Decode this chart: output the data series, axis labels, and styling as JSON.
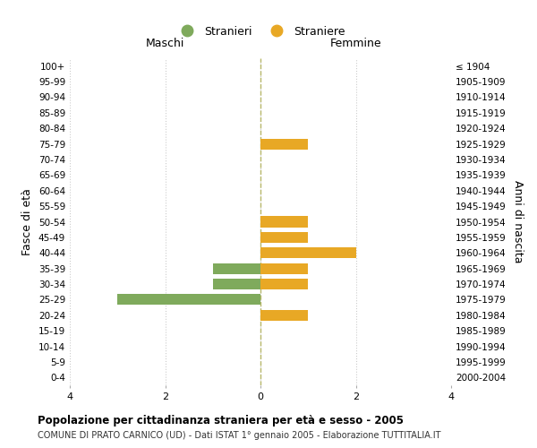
{
  "age_groups": [
    "100+",
    "95-99",
    "90-94",
    "85-89",
    "80-84",
    "75-79",
    "70-74",
    "65-69",
    "60-64",
    "55-59",
    "50-54",
    "45-49",
    "40-44",
    "35-39",
    "30-34",
    "25-29",
    "20-24",
    "15-19",
    "10-14",
    "5-9",
    "0-4"
  ],
  "birth_years": [
    "≤ 1904",
    "1905-1909",
    "1910-1914",
    "1915-1919",
    "1920-1924",
    "1925-1929",
    "1930-1934",
    "1935-1939",
    "1940-1944",
    "1945-1949",
    "1950-1954",
    "1955-1959",
    "1960-1964",
    "1965-1969",
    "1970-1974",
    "1975-1979",
    "1980-1984",
    "1985-1989",
    "1990-1994",
    "1995-1999",
    "2000-2004"
  ],
  "males": [
    0,
    0,
    0,
    0,
    0,
    0,
    0,
    0,
    0,
    0,
    0,
    0,
    0,
    1,
    1,
    3,
    0,
    0,
    0,
    0,
    0
  ],
  "females": [
    0,
    0,
    0,
    0,
    0,
    1,
    0,
    0,
    0,
    0,
    1,
    1,
    2,
    1,
    1,
    0,
    1,
    0,
    0,
    0,
    0
  ],
  "male_color": "#7faa5c",
  "female_color": "#e8a825",
  "xlim": 4,
  "xlabel_left": "Maschi",
  "xlabel_right": "Femmine",
  "ylabel_left": "Fasce di età",
  "ylabel_right": "Anni di nascita",
  "legend_male": "Stranieri",
  "legend_female": "Straniere",
  "title": "Popolazione per cittadinanza straniera per età e sesso - 2005",
  "subtitle": "COMUNE DI PRATO CARNICO (UD) - Dati ISTAT 1° gennaio 2005 - Elaborazione TUTTITALIA.IT",
  "bg_color": "#ffffff",
  "grid_color": "#cccccc",
  "center_line_color": "#b8b86a"
}
